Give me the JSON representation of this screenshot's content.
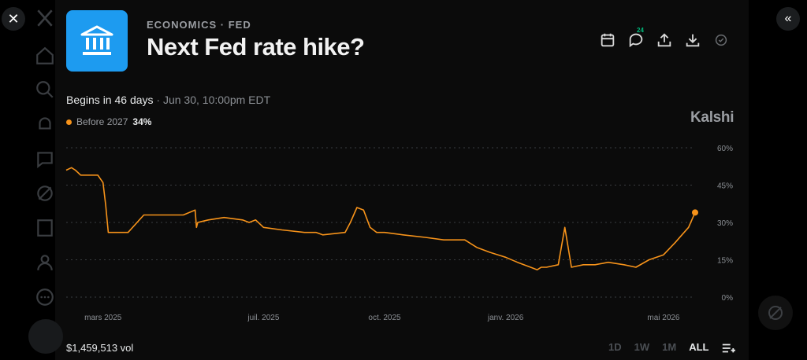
{
  "market": {
    "category": "ECONOMICS · FED",
    "title": "Next Fed rate hike?",
    "begins_prefix": "Begins in 46 days",
    "begins_date": " · Jun 30, 10:00pm EDT",
    "comments_count": "24",
    "brand": "Kalshi",
    "volume": "$1,459,513 vol"
  },
  "legend": {
    "series_name": "Before 2027",
    "value": "34%"
  },
  "ranges": [
    {
      "label": "1D"
    },
    {
      "label": "1W"
    },
    {
      "label": "1M"
    },
    {
      "label": "ALL",
      "active": true
    }
  ],
  "icons": [
    "close-icon",
    "collapse-icon",
    "bank-icon",
    "calendar-icon",
    "comment-icon",
    "share-icon",
    "download-icon",
    "check-icon",
    "list-icon"
  ],
  "colors": {
    "accent": "#f7931a",
    "logo": "#1d9bf0"
  },
  "chart_data": {
    "type": "line",
    "ylabel": "",
    "ylim": [
      0,
      60
    ],
    "yticks": [
      "60%",
      "45%",
      "30%",
      "15%",
      "0%"
    ],
    "xticks": [
      "mars 2025",
      "juil. 2025",
      "oct. 2025",
      "janv. 2026",
      "mai 2026"
    ],
    "grid": true,
    "series": [
      {
        "name": "Before 2027",
        "x": [
          "2025-02-01",
          "2025-02-05",
          "2025-02-08",
          "2025-02-12",
          "2025-02-15",
          "2025-02-20",
          "2025-02-25",
          "2025-03-01",
          "2025-03-03",
          "2025-03-05",
          "2025-03-20",
          "2025-04-01",
          "2025-04-03",
          "2025-04-15",
          "2025-05-01",
          "2025-05-10",
          "2025-05-11",
          "2025-05-12",
          "2025-05-20",
          "2025-06-01",
          "2025-06-15",
          "2025-06-20",
          "2025-06-25",
          "2025-07-01",
          "2025-07-15",
          "2025-08-01",
          "2025-08-10",
          "2025-08-15",
          "2025-09-01",
          "2025-09-05",
          "2025-09-10",
          "2025-09-15",
          "2025-09-20",
          "2025-09-25",
          "2025-10-01",
          "2025-10-15",
          "2025-11-01",
          "2025-11-15",
          "2025-12-01",
          "2025-12-10",
          "2025-12-20",
          "2026-01-01",
          "2026-01-10",
          "2026-01-20",
          "2026-01-25",
          "2026-01-28",
          "2026-02-01",
          "2026-02-10",
          "2026-02-15",
          "2026-02-20",
          "2026-03-01",
          "2026-03-10",
          "2026-03-20",
          "2026-04-01",
          "2026-04-10",
          "2026-04-20",
          "2026-05-01",
          "2026-05-10",
          "2026-05-15",
          "2026-05-20",
          "2026-05-25"
        ],
        "values": [
          51,
          52,
          51,
          49,
          49,
          49,
          49,
          46,
          37,
          26,
          26,
          33,
          33,
          33,
          33,
          35,
          28,
          30,
          31,
          32,
          31,
          30,
          31,
          28,
          27,
          26,
          26,
          25,
          26,
          30,
          36,
          35,
          28,
          26,
          26,
          25,
          24,
          23,
          23,
          20,
          18,
          16,
          14,
          12,
          11,
          12,
          12,
          13,
          28,
          12,
          13,
          13,
          14,
          13,
          12,
          15,
          17,
          22,
          25,
          28,
          34
        ]
      }
    ]
  }
}
